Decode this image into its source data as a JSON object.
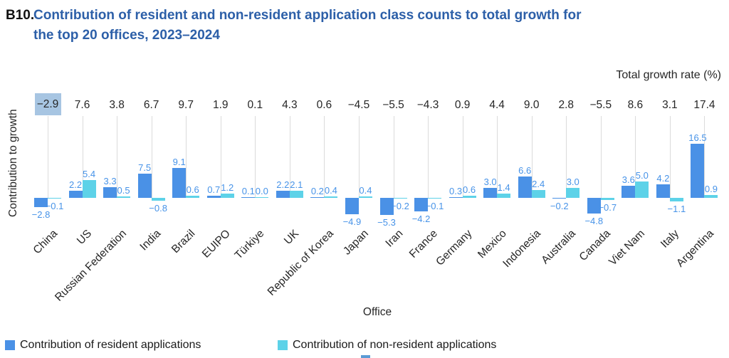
{
  "header": {
    "panel_label": "B10.",
    "title_line1": "Contribution of resident and non-resident application class counts to total growth for",
    "title_line2": "the top 20 offices, 2023–2024"
  },
  "chart_data": {
    "type": "bar",
    "title": "Contribution of resident and non-resident application class counts to total growth for the top 20 offices, 2023–2024",
    "xlabel": "Office",
    "ylabel": "Contribution to growth",
    "secondary_axis_label": "Total growth rate (%)",
    "legend_position": "bottom",
    "grid": "vertical line per category",
    "y_ticks_visible": false,
    "ylim_implied": [
      -6,
      25
    ],
    "label_format": "one decimal",
    "categories": [
      "China",
      "US",
      "Russian Federation",
      "India",
      "Brazil",
      "EUIPO",
      "Türkiye",
      "UK",
      "Republic of Korea",
      "Japan",
      "Iran",
      "France",
      "Germany",
      "Mexico",
      "Indonesia",
      "Australia",
      "Canada",
      "Viet Nam",
      "Italy",
      "Argentina"
    ],
    "total_growth_rate_percent": [
      -2.9,
      7.6,
      3.8,
      6.7,
      9.7,
      1.9,
      0.1,
      4.3,
      0.6,
      -4.5,
      -5.5,
      -4.3,
      0.9,
      4.4,
      9.0,
      2.8,
      -5.5,
      8.6,
      3.1,
      17.4
    ],
    "highlight_index": 0,
    "highlighted_category": "China",
    "highlighted_value": "-2.9",
    "series": [
      {
        "name": "Contribution of resident applications",
        "color": "#4A91E6",
        "values": [
          -2.8,
          2.2,
          3.3,
          7.5,
          9.1,
          0.7,
          0.1,
          2.2,
          0.2,
          -4.9,
          -5.3,
          -4.2,
          0.3,
          3.0,
          6.6,
          -0.2,
          -4.8,
          3.6,
          4.2,
          16.5
        ]
      },
      {
        "name": "Contribution of non-resident applications",
        "color": "#5DD2E8",
        "values": [
          -0.1,
          5.4,
          0.5,
          -0.8,
          0.6,
          1.2,
          0.0,
          2.1,
          0.4,
          0.4,
          -0.2,
          -0.1,
          0.6,
          1.4,
          2.4,
          3.0,
          -0.7,
          5.0,
          -1.1,
          0.9
        ]
      }
    ],
    "colors": {
      "title": "#2C5FA8",
      "value_labels": "#4793E8",
      "axis_text": "#262626",
      "gridline": "#DBDBDB",
      "highlight_bg": "#A7C5E2"
    }
  }
}
